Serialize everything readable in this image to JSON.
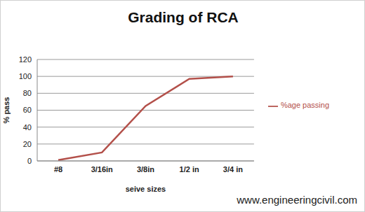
{
  "chart_data": {
    "type": "line",
    "title": "Grading of RCA",
    "x_label": "seive sizes",
    "y_label": "% pass",
    "categories": [
      "#8",
      "3/16in",
      "3/8in",
      "1/2 in",
      "3/4 in"
    ],
    "series": [
      {
        "name": "%age passing",
        "color": "#b3504a",
        "values": [
          1,
          10,
          65,
          97,
          100
        ]
      }
    ],
    "ylim": [
      0,
      120
    ],
    "yticks": [
      0,
      20,
      40,
      60,
      80,
      100,
      120
    ],
    "grid": true,
    "legend": "right",
    "annotations": [
      "www.engineeringcivil.com"
    ]
  }
}
